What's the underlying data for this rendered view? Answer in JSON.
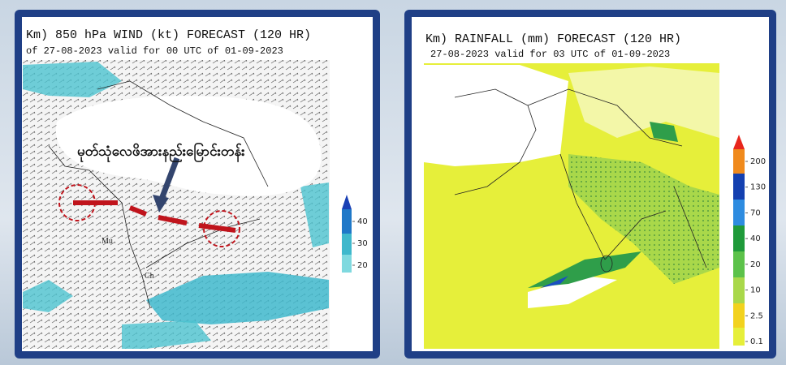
{
  "wind_panel": {
    "title": "Km) 850 hPa WIND (kt) FORECAST (120 HR)",
    "subtitle": "of 27-08-2023 valid for 00 UTC of 01-09-2023",
    "annotation": "မုတ်သုံလေဖိအားနည်းမြောင်းတန်း",
    "place_labels": [
      "Mu",
      "Ch"
    ],
    "colorbar_labels": [
      40,
      30,
      20
    ]
  },
  "rain_panel": {
    "title": "Km) RAINFALL (mm) FORECAST (120 HR)",
    "subtitle": "27-08-2023 valid for 03 UTC of 01-09-2023",
    "colorbar_labels": [
      200,
      130,
      70,
      40,
      20,
      10,
      2.5,
      0.1
    ]
  }
}
